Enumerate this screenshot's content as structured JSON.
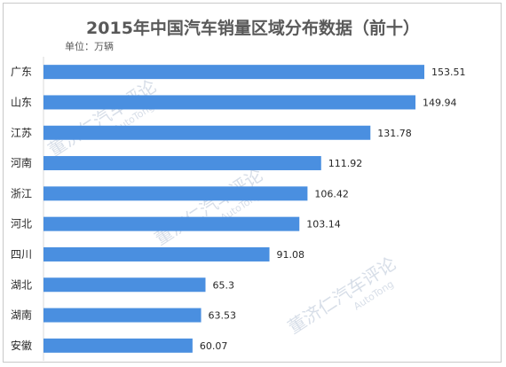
{
  "chart_data": {
    "type": "bar",
    "orientation": "horizontal",
    "title": "2015年中国汽车销量区域分布数据（前十）",
    "unit_label": "单位：万辆",
    "categories": [
      "广东",
      "山东",
      "江苏",
      "河南",
      "浙江",
      "河北",
      "四川",
      "湖北",
      "湖南",
      "安徽"
    ],
    "values": [
      153.51,
      149.94,
      131.78,
      111.92,
      106.42,
      103.14,
      91.08,
      65.3,
      63.53,
      60.07
    ],
    "bar_color": "#4a8fe0",
    "xlim": [
      0,
      160
    ],
    "grid": false,
    "legend": "none"
  },
  "watermark": {
    "text": "董济仁汽车评论",
    "sub": "AutoTong"
  }
}
